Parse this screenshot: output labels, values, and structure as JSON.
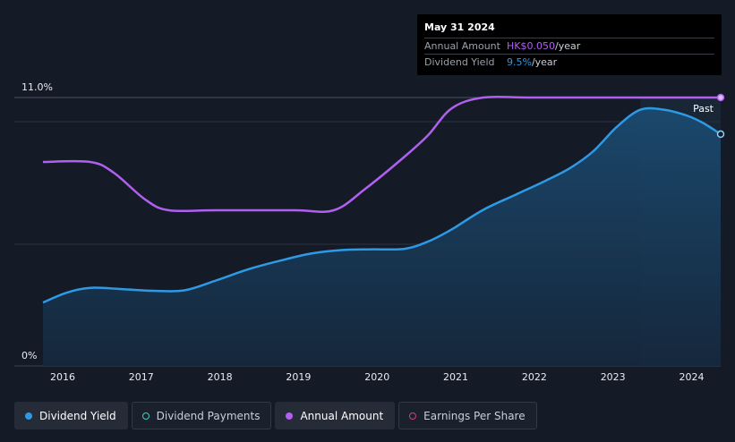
{
  "tooltip": {
    "date": "May 31 2024",
    "annual_amount_label": "Annual Amount",
    "annual_amount_value": "HK$0.050",
    "annual_amount_unit": "/year",
    "yield_label": "Dividend Yield",
    "yield_value": "9.5%",
    "yield_unit": "/year"
  },
  "legend": [
    {
      "label": "Dividend Yield",
      "marker": "filled-blue"
    },
    {
      "label": "Dividend Payments",
      "marker": "ring-teal"
    },
    {
      "label": "Annual Amount",
      "marker": "filled-purple"
    },
    {
      "label": "Earnings Per Share",
      "marker": "ring-pink"
    }
  ],
  "colors": {
    "background": "#151b26",
    "yield": "#2e9ae6",
    "annual_amount": "#b060f0",
    "grid": "#2a3140"
  },
  "chart_data": {
    "type": "line",
    "ylim": [
      0,
      11.0
    ],
    "y_tick_labels": [
      "0%",
      "11.0%"
    ],
    "x_ticks": [
      2016,
      2017,
      2018,
      2019,
      2020,
      2021,
      2022,
      2023,
      2024
    ],
    "past_label": "Past",
    "past_start": 2023.4,
    "series": [
      {
        "name": "Dividend Yield",
        "unit": "%",
        "x": [
          2015.8,
          2016.1,
          2016.4,
          2016.8,
          2017.2,
          2017.6,
          2018.0,
          2018.4,
          2018.8,
          2019.2,
          2019.6,
          2020.0,
          2020.4,
          2020.7,
          2021.0,
          2021.4,
          2021.8,
          2022.2,
          2022.5,
          2022.8,
          2023.1,
          2023.4,
          2023.7,
          2024.0,
          2024.2,
          2024.42
        ],
        "values": [
          2.6,
          3.0,
          3.2,
          3.15,
          3.08,
          3.1,
          3.5,
          3.95,
          4.3,
          4.6,
          4.75,
          4.78,
          4.8,
          5.1,
          5.6,
          6.4,
          7.0,
          7.6,
          8.1,
          8.8,
          9.8,
          10.5,
          10.5,
          10.25,
          9.95,
          9.5
        ]
      },
      {
        "name": "Annual Amount",
        "unit": "HK$",
        "x": [
          2015.8,
          2016.4,
          2016.7,
          2017.1,
          2017.4,
          2018.0,
          2019.0,
          2019.5,
          2019.9,
          2020.4,
          2020.7,
          2021.0,
          2021.4,
          2022.0,
          2023.0,
          2024.42
        ],
        "values": [
          0.038,
          0.038,
          0.036,
          0.031,
          0.029,
          0.029,
          0.029,
          0.029,
          0.033,
          0.039,
          0.043,
          0.048,
          0.05,
          0.05,
          0.05,
          0.05
        ]
      }
    ]
  }
}
